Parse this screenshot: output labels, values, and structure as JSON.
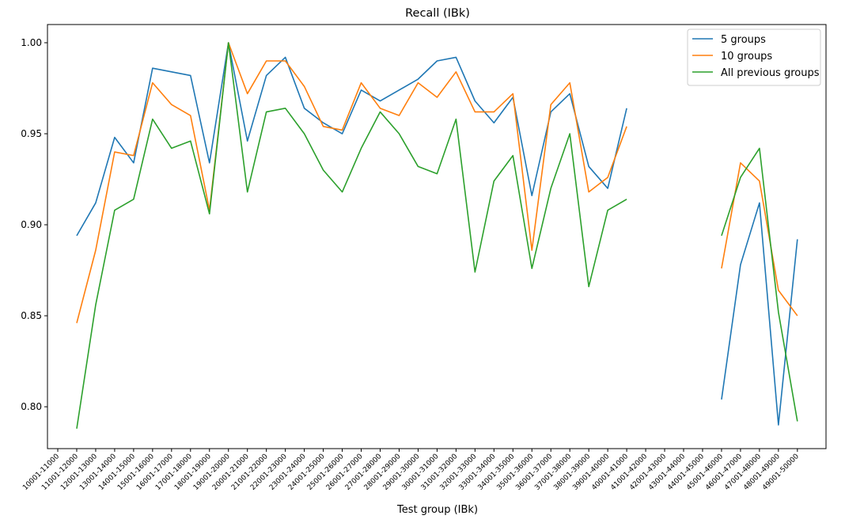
{
  "chart_data": {
    "type": "line",
    "title": "Recall (IBk)",
    "xlabel": "Test group (IBk)",
    "ylabel": "",
    "categories": [
      "10001-11000",
      "11001-12000",
      "12001-13000",
      "13001-14000",
      "14001-15000",
      "15001-16000",
      "16001-17000",
      "17001-18000",
      "18001-19000",
      "19001-20000",
      "20001-21000",
      "21001-22000",
      "22001-23000",
      "23001-24000",
      "24001-25000",
      "25001-26000",
      "26001-27000",
      "27001-28000",
      "28001-29000",
      "29001-30000",
      "30001-31000",
      "31001-32000",
      "32001-33000",
      "33001-34000",
      "34001-35000",
      "35001-36000",
      "36001-37000",
      "37001-38000",
      "38001-39000",
      "39001-40000",
      "40001-41000",
      "41001-42000",
      "42001-43000",
      "43001-44000",
      "44001-45000",
      "45001-46000",
      "46001-47000",
      "47001-48000",
      "48001-49000",
      "49001-50000"
    ],
    "yticks": [
      "0.80",
      "0.85",
      "0.90",
      "0.95",
      "1.00"
    ],
    "ylim": [
      0.777,
      1.01
    ],
    "grid": false,
    "legend_position": "top-right",
    "series": [
      {
        "name": "5 groups",
        "color": "#1f77b4",
        "values": [
          null,
          0.894,
          0.912,
          0.948,
          0.934,
          0.986,
          0.984,
          0.982,
          0.934,
          1.0,
          0.946,
          0.982,
          0.992,
          0.964,
          0.956,
          0.95,
          0.974,
          0.968,
          0.974,
          0.98,
          0.99,
          0.992,
          0.968,
          0.956,
          0.97,
          0.916,
          0.962,
          0.972,
          0.932,
          0.92,
          0.964,
          null,
          null,
          null,
          null,
          0.804,
          0.878,
          0.912,
          0.79,
          0.892
        ]
      },
      {
        "name": "10 groups",
        "color": "#ff7f0e",
        "values": [
          null,
          0.846,
          0.886,
          0.94,
          0.938,
          0.978,
          0.966,
          0.96,
          0.908,
          1.0,
          0.972,
          0.99,
          0.99,
          0.976,
          0.954,
          0.952,
          0.978,
          0.964,
          0.96,
          0.978,
          0.97,
          0.984,
          0.962,
          0.962,
          0.972,
          0.886,
          0.966,
          0.978,
          0.918,
          0.926,
          0.954,
          null,
          null,
          null,
          null,
          0.876,
          0.934,
          0.924,
          0.864,
          0.85
        ]
      },
      {
        "name": "All previous groups",
        "color": "#2ca02c",
        "values": [
          null,
          0.788,
          0.856,
          0.908,
          0.914,
          0.958,
          0.942,
          0.946,
          0.906,
          1.0,
          0.918,
          0.962,
          0.964,
          0.95,
          0.93,
          0.918,
          0.942,
          0.962,
          0.95,
          0.932,
          0.928,
          0.958,
          0.874,
          0.924,
          0.938,
          0.876,
          0.92,
          0.95,
          0.866,
          0.908,
          0.914,
          null,
          null,
          null,
          null,
          0.894,
          0.926,
          0.942,
          0.852,
          0.792
        ]
      }
    ]
  }
}
